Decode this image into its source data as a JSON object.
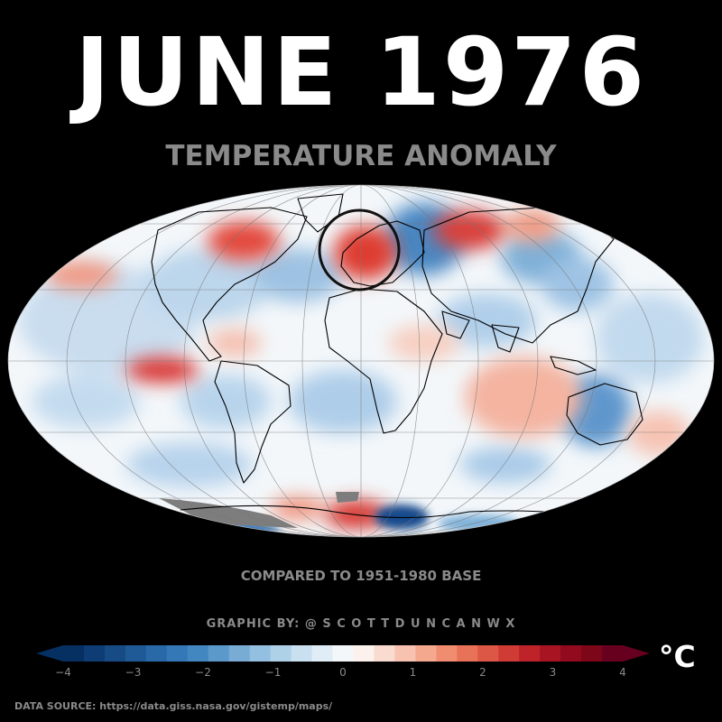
{
  "title": "JUNE 1976",
  "subtitle": "TEMPERATURE ANOMALY",
  "compared": "COMPARED TO 1951-1980 BASE",
  "credit": "GRAPHIC BY: @ S C O T T D U N C A N W X",
  "source": "DATA SOURCE: https://data.giss.nasa.gov/gistemp/maps/",
  "colorbar": {
    "unit": "°C",
    "min": -4,
    "max": 4,
    "ticks": [
      "−4",
      "−3",
      "−2",
      "−1",
      "0",
      "1",
      "2",
      "3",
      "4"
    ],
    "colors": [
      "#053061",
      "#0d3d74",
      "#174b85",
      "#1f5a97",
      "#2a69a8",
      "#3478b7",
      "#4387c0",
      "#5b99cb",
      "#78acd5",
      "#93bfe0",
      "#afd1e8",
      "#c9e0f0",
      "#e0edf6",
      "#f3f7fa",
      "#fcf1ec",
      "#fadbd0",
      "#f7c3b0",
      "#f4a98f",
      "#f08d70",
      "#e87257",
      "#dc5745",
      "#cf3b35",
      "#bd2329",
      "#a81422",
      "#920a1e",
      "#7d0619",
      "#67001f"
    ]
  },
  "colors": {
    "background": "#000000",
    "text_primary": "#ffffff",
    "text_secondary": "#8a8a8a",
    "ocean_neutral": "#f5f8fb"
  },
  "map": {
    "projection": "mollweide",
    "anomalies": [
      {
        "region": "Northwest Europe",
        "sign": "warm"
      },
      {
        "region": "Canada / Labrador",
        "sign": "warm"
      },
      {
        "region": "Central Siberia",
        "sign": "warm"
      },
      {
        "region": "Eastern Europe / Baltic",
        "sign": "cold"
      },
      {
        "region": "Eastern Pacific (tropical)",
        "sign": "warm"
      },
      {
        "region": "Southern Indian Ocean",
        "sign": "warm"
      },
      {
        "region": "Antarctic coast (Weddell)",
        "sign": "cold"
      }
    ],
    "highlight": "British Isles / Western Europe"
  }
}
